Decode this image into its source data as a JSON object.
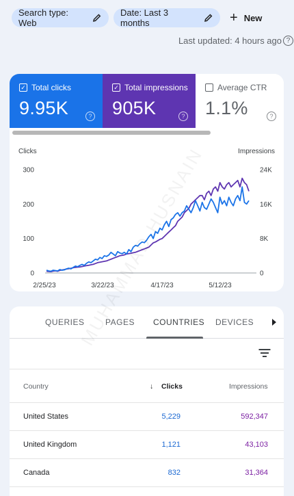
{
  "filters": {
    "search_type": "Search type: Web",
    "date": "Date: Last 3 months",
    "new_label": "New"
  },
  "last_updated": "Last updated: 4 hours ago",
  "metrics": {
    "clicks": {
      "label": "Total clicks",
      "value": "9.95K",
      "checked": true
    },
    "impressions": {
      "label": "Total impressions",
      "value": "905K",
      "checked": true
    },
    "ctr": {
      "label": "Average CTR",
      "value": "1.1%",
      "checked": false
    }
  },
  "colors": {
    "clicks": "#1a73e8",
    "impressions": "#5e35b1"
  },
  "chart_data": {
    "type": "line",
    "left_axis_label": "Clicks",
    "right_axis_label": "Impressions",
    "left_ticks": [
      "300",
      "200",
      "100",
      "0"
    ],
    "right_ticks": [
      "24K",
      "16K",
      "8K",
      "0"
    ],
    "x_ticks": [
      "2/25/23",
      "3/22/23",
      "4/17/23",
      "5/12/23"
    ],
    "ylim_left": [
      0,
      300
    ],
    "ylim_right": [
      0,
      24000
    ],
    "series": [
      {
        "name": "Clicks",
        "axis": "left",
        "color": "#1a73e8",
        "values": [
          8,
          6,
          5,
          8,
          7,
          6,
          10,
          8,
          9,
          12,
          14,
          12,
          16,
          20,
          18,
          22,
          25,
          22,
          28,
          32,
          30,
          35,
          40,
          38,
          45,
          42,
          50,
          48,
          52,
          60,
          55,
          50,
          62,
          58,
          56,
          60,
          55,
          68,
          62,
          75,
          80,
          78,
          85,
          90,
          88,
          95,
          105,
          112,
          100,
          120,
          115,
          130,
          125,
          140,
          150,
          135,
          155,
          160,
          170,
          175,
          165,
          175,
          180,
          195,
          185,
          175,
          190,
          210,
          195,
          180,
          205,
          190,
          185,
          200,
          215,
          205,
          190,
          175,
          220,
          200,
          210,
          195,
          220,
          205,
          195,
          215,
          225,
          210,
          250,
          205,
          200,
          210
        ]
      },
      {
        "name": "Impressions",
        "axis": "right",
        "color": "#5e35b1",
        "values": [
          400,
          350,
          300,
          450,
          500,
          400,
          600,
          700,
          800,
          900,
          1000,
          1100,
          1200,
          1300,
          1350,
          1400,
          1500,
          1600,
          1700,
          1800,
          1900,
          2000,
          2200,
          2400,
          2500,
          2600,
          2700,
          2800,
          3000,
          3200,
          3400,
          3600,
          3800,
          4000,
          4100,
          4200,
          4400,
          4500,
          4600,
          4700,
          4800,
          5000,
          5200,
          5400,
          5600,
          5800,
          6000,
          6500,
          7000,
          7200,
          7500,
          7800,
          8000,
          8500,
          9000,
          9500,
          10000,
          10500,
          11000,
          12000,
          12500,
          13000,
          14000,
          14500,
          15000,
          16000,
          16500,
          17000,
          17500,
          18000,
          18000,
          17000,
          18500,
          19000,
          18000,
          19500,
          20000,
          19000,
          21000,
          20000,
          19500,
          20500,
          21000,
          20000,
          20500,
          21000,
          21500,
          20000,
          22000,
          21000,
          20500,
          19000
        ]
      }
    ]
  },
  "tabs": [
    "QUERIES",
    "PAGES",
    "COUNTRIES",
    "DEVICES"
  ],
  "active_tab": "COUNTRIES",
  "table": {
    "headers": {
      "country": "Country",
      "clicks": "Clicks",
      "impressions": "Impressions"
    },
    "rows": [
      {
        "country": "United States",
        "clicks": "5,229",
        "impressions": "592,347"
      },
      {
        "country": "United Kingdom",
        "clicks": "1,121",
        "impressions": "43,103"
      },
      {
        "country": "Canada",
        "clicks": "832",
        "impressions": "31,364"
      }
    ]
  },
  "watermark": "MUHAMMAD HUSNAIN"
}
